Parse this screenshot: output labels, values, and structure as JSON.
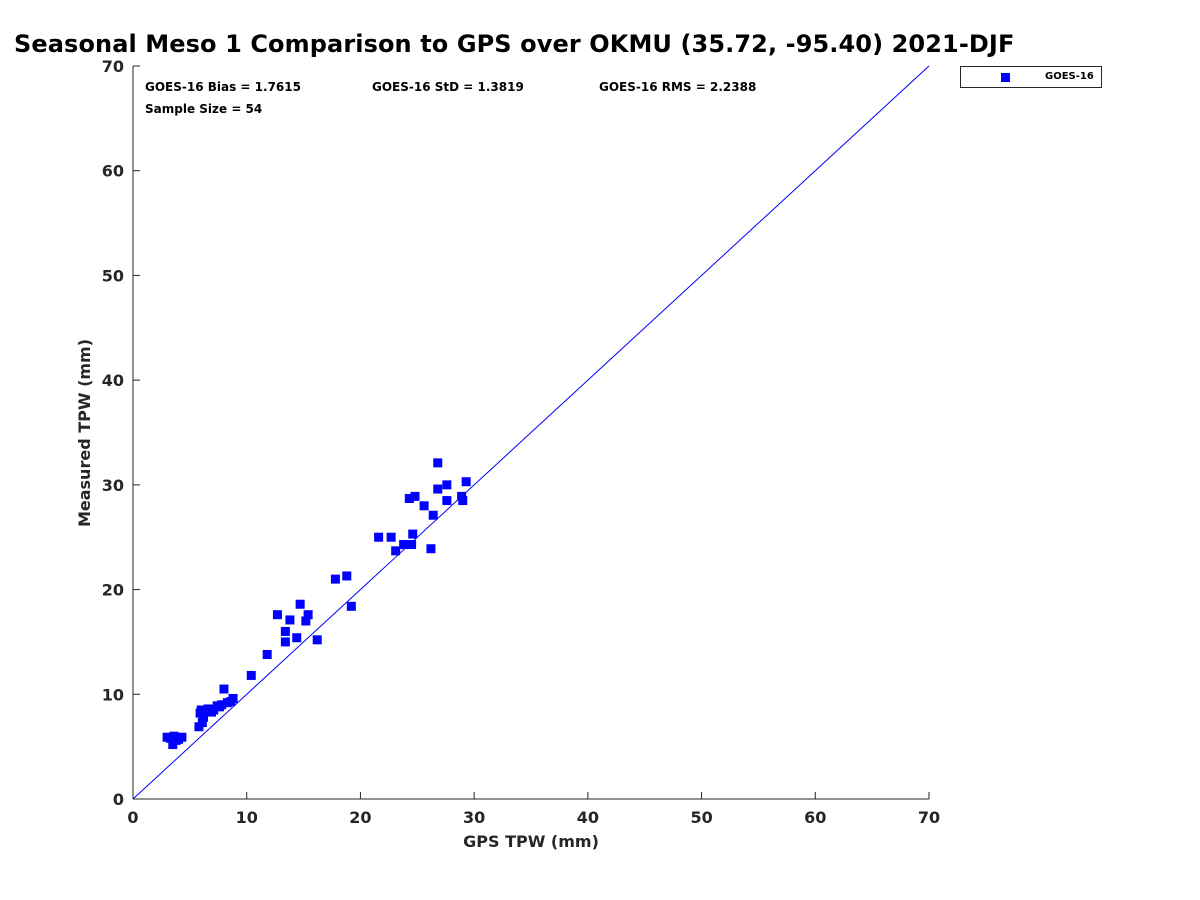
{
  "chart_data": {
    "type": "scatter",
    "title": "Seasonal Meso 1 Comparison to GPS over OKMU (35.72, -95.40) 2021-DJF",
    "xlabel": "GPS TPW (mm)",
    "ylabel": "Measured TPW (mm)",
    "xlim": [
      0,
      70
    ],
    "ylim": [
      0,
      70
    ],
    "xticks": [
      "0",
      "10",
      "20",
      "30",
      "40",
      "50",
      "60",
      "70"
    ],
    "yticks": [
      "0",
      "10",
      "20",
      "30",
      "40",
      "50",
      "60",
      "70"
    ],
    "legend_position": "top-right, outside plot",
    "reference_line": {
      "type": "one-to-one",
      "x": [
        0,
        70
      ],
      "y": [
        0,
        70
      ],
      "color": "#0000ff"
    },
    "stats": {
      "bias": "GOES-16 Bias = 1.7615",
      "std": "GOES-16 StD = 1.3819",
      "rms": "GOES-16 RMS = 2.2388",
      "sample": "Sample Size = 54"
    },
    "series": [
      {
        "name": "GOES-16",
        "color": "#0000ff",
        "marker": "square",
        "points": [
          [
            3.0,
            5.9
          ],
          [
            3.5,
            5.2
          ],
          [
            3.6,
            6.0
          ],
          [
            3.8,
            5.6
          ],
          [
            4.3,
            5.9
          ],
          [
            5.8,
            6.9
          ],
          [
            6.0,
            8.5
          ],
          [
            6.1,
            7.3
          ],
          [
            6.2,
            7.8
          ],
          [
            6.6,
            8.6
          ],
          [
            7.1,
            8.5
          ],
          [
            7.4,
            8.9
          ],
          [
            7.8,
            9.0
          ],
          [
            8.0,
            10.5
          ],
          [
            8.3,
            9.2
          ],
          [
            8.8,
            9.6
          ],
          [
            10.4,
            11.8
          ],
          [
            11.8,
            13.8
          ],
          [
            12.7,
            17.6
          ],
          [
            13.4,
            16.0
          ],
          [
            13.4,
            15.0
          ],
          [
            13.8,
            17.1
          ],
          [
            14.4,
            15.4
          ],
          [
            14.7,
            18.6
          ],
          [
            15.2,
            17.0
          ],
          [
            15.4,
            17.6
          ],
          [
            16.2,
            15.2
          ],
          [
            17.8,
            21.0
          ],
          [
            18.8,
            21.3
          ],
          [
            19.2,
            18.4
          ],
          [
            21.6,
            25.0
          ],
          [
            22.7,
            25.0
          ],
          [
            23.1,
            23.7
          ],
          [
            23.8,
            24.3
          ],
          [
            24.3,
            28.7
          ],
          [
            24.5,
            24.3
          ],
          [
            24.6,
            25.3
          ],
          [
            24.8,
            28.9
          ],
          [
            25.6,
            28.0
          ],
          [
            26.2,
            23.9
          ],
          [
            26.4,
            27.1
          ],
          [
            26.8,
            29.6
          ],
          [
            26.8,
            32.1
          ],
          [
            27.6,
            30.0
          ],
          [
            27.6,
            28.5
          ],
          [
            28.9,
            28.9
          ],
          [
            29.0,
            28.5
          ],
          [
            29.3,
            30.3
          ],
          [
            5.9,
            8.2
          ],
          [
            6.9,
            8.3
          ],
          [
            3.3,
            5.8
          ],
          [
            4.0,
            5.7
          ],
          [
            8.6,
            9.3
          ],
          [
            7.6,
            8.8
          ]
        ]
      }
    ]
  }
}
